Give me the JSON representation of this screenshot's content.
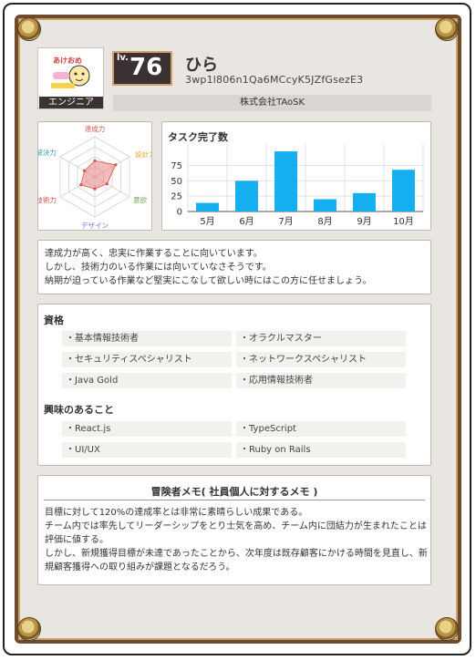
{
  "profile": {
    "role": "エンジニア",
    "level_label": "lv.",
    "level": "76",
    "name": "ひら",
    "user_id": "3wp1l806n1Qa6MCcyK5JZfGsezE3",
    "company": "株式会社TAoSK",
    "avatar_caption": "あけおめ"
  },
  "radar": {
    "labels": [
      "達成力",
      "設計力",
      "意欲",
      "デザイン",
      "技術力",
      "解決力"
    ],
    "label_colors": [
      "#d9534f",
      "#e8a33c",
      "#6aa84f",
      "#6b6bd6",
      "#d9534f",
      "#3a9aa5"
    ],
    "values": [
      0.4,
      0.6,
      0.35,
      0.3,
      0.4,
      0.3
    ]
  },
  "chart_data": {
    "type": "bar",
    "title": "タスク完了数",
    "categories": [
      "5月",
      "6月",
      "7月",
      "8月",
      "9月",
      "10月"
    ],
    "values": [
      14,
      50,
      98,
      20,
      30,
      68
    ],
    "yticks": [
      "0",
      "25",
      "50",
      "75"
    ],
    "ylim": [
      0,
      110
    ],
    "color": "#15aeef"
  },
  "description": [
    "達成力が高く、忠実に作業することに向いています。",
    "しかし、技術力のいる作業には向いていなさそうです。",
    "納期が迫っている作業など堅実にこなして欲しい時にはこの方に任せましょう。"
  ],
  "qualifications": {
    "title": "資格",
    "items": [
      "・基本情報技術者",
      "・オラクルマスター",
      "・セキュリティスペシャリスト",
      "・ネットワークスペシャリスト",
      "・Java Gold",
      "・応用情報技術者"
    ]
  },
  "interests": {
    "title": "興味のあること",
    "items": [
      "・React.js",
      "・TypeScript",
      "・UI/UX",
      "・Ruby on Rails"
    ]
  },
  "memo": {
    "title": "冒険者メモ( 社員個人に対するメモ )",
    "lines": [
      "目標に対して120%の達成率とは非常に素晴らしい成果である。",
      "チーム内では率先してリーダーシップをとり士気を高め、チーム内に団結力が生まれたことは",
      "評価に値する。",
      "しかし、新規獲得目標が未達であったことから、次年度は既存顧客にかける時間を見直し、新",
      "規顧客獲得への取り組みが課題となるだろう。"
    ]
  }
}
